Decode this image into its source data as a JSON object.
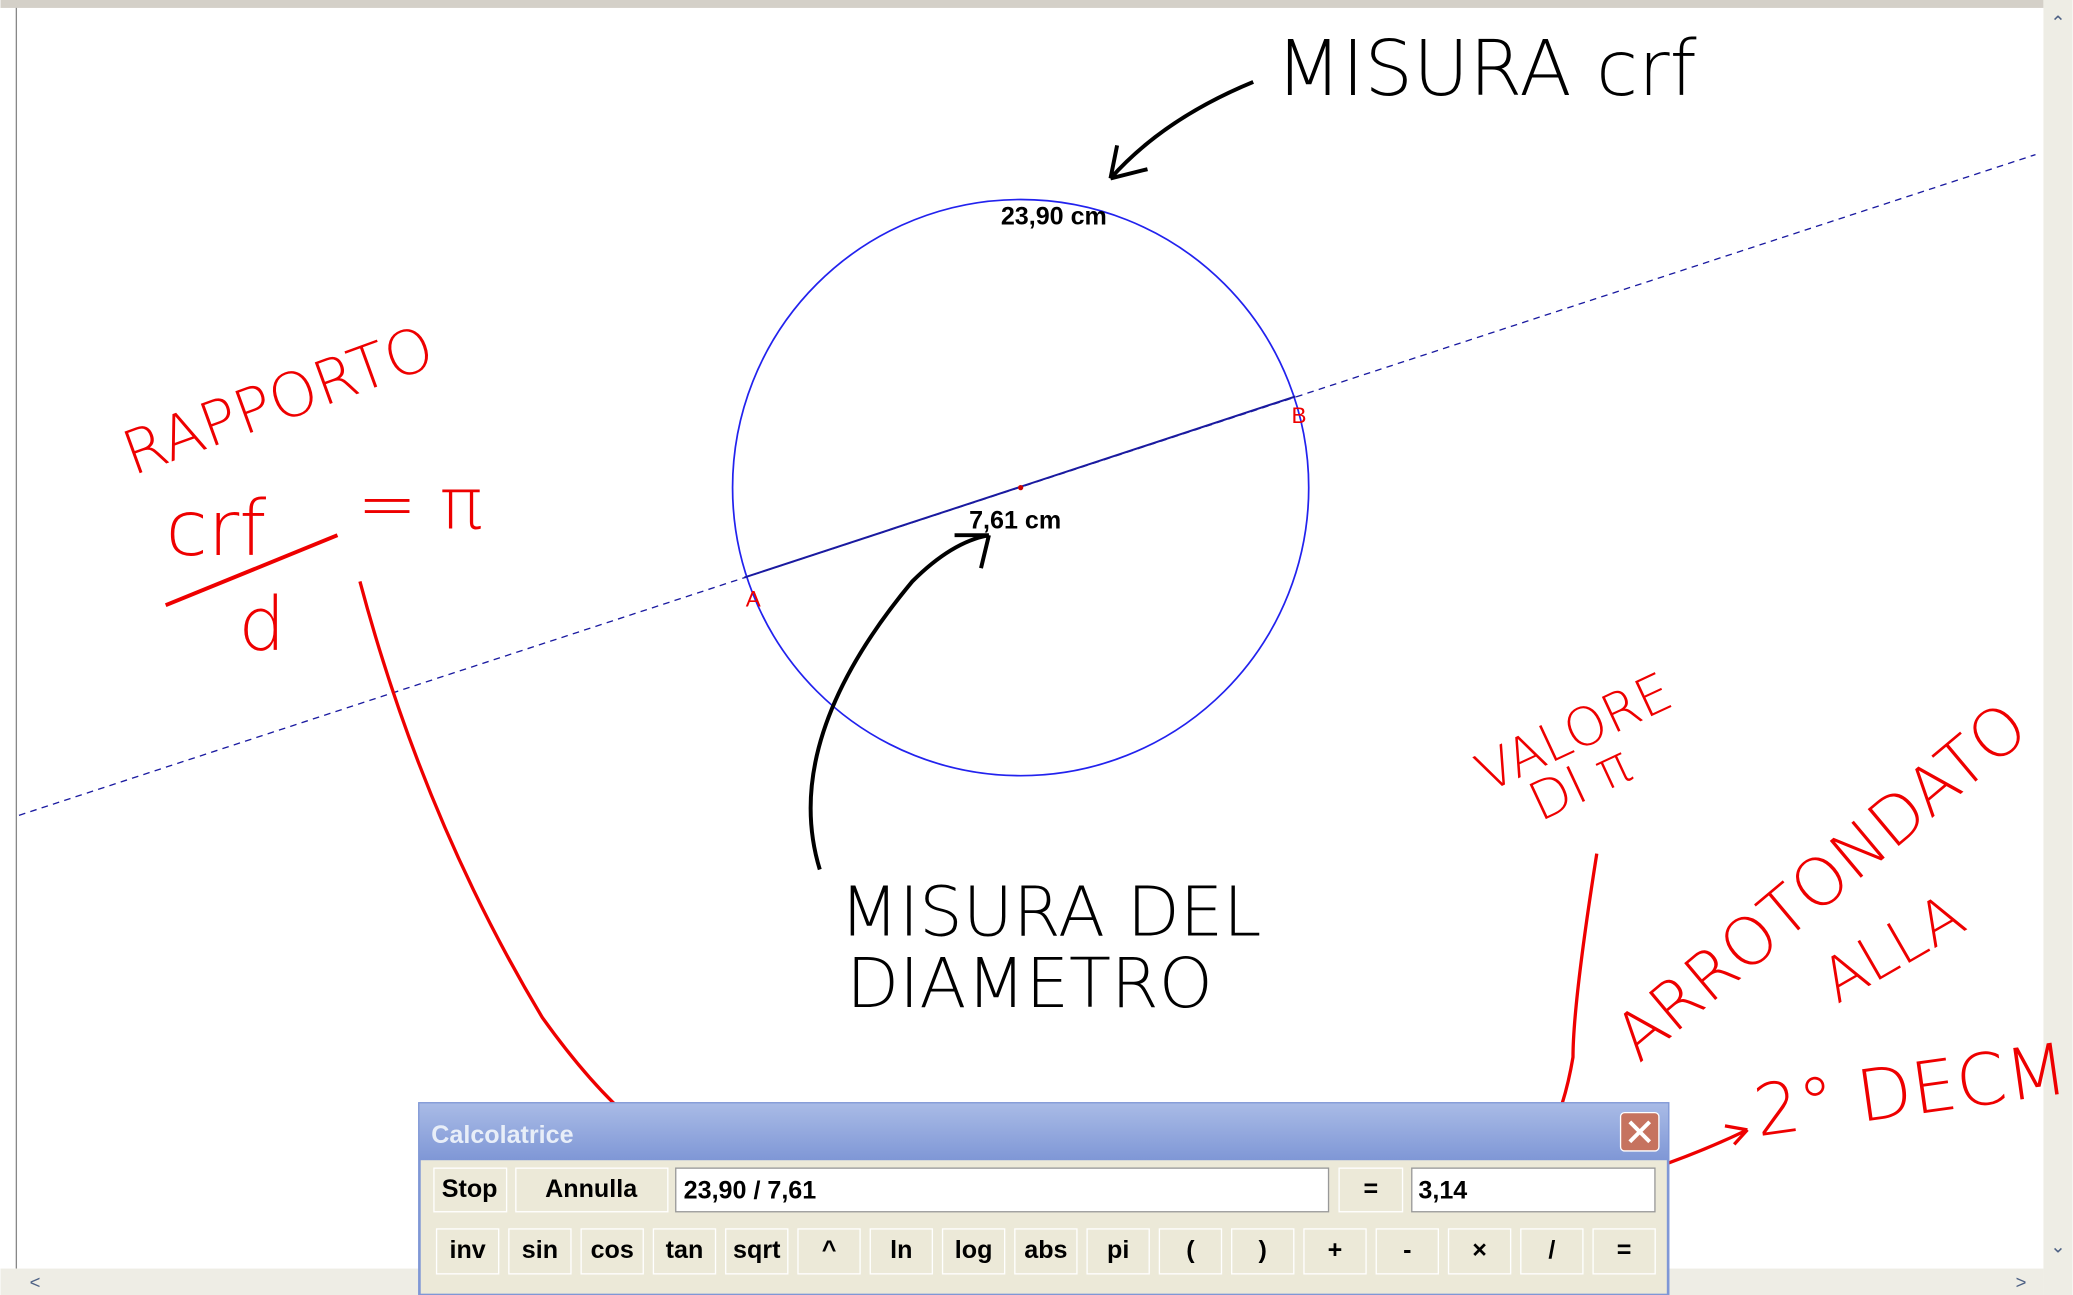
{
  "drawing": {
    "circumference_label": "23,90  cm",
    "diameter_label": "7,61  cm",
    "point_a": "A",
    "point_b": "B"
  },
  "annotations": {
    "misura_crf": "MISURA crf",
    "rapporto": "RAPPORTO",
    "crf": "crf",
    "d": "d",
    "equals_pi": "= π",
    "misura_del": "MISURA DEL",
    "diametro": "DIAMETRO",
    "valore": "VALORE",
    "di_pi": "DI π",
    "arrotondato": "ARROTONDATO",
    "alla": "ALLA",
    "decimale": "2° DECM."
  },
  "calculator": {
    "title": "Calcolatrice",
    "stop": "Stop",
    "annulla": "Annulla",
    "expression": "23,90  / 7,61",
    "equals": "=",
    "result": "3,14",
    "keys": [
      "inv",
      "sin",
      "cos",
      "tan",
      "sqrt",
      "^",
      "ln",
      "log",
      "abs",
      "pi",
      "(",
      ")",
      "+",
      "-",
      "×",
      "/",
      "="
    ]
  }
}
